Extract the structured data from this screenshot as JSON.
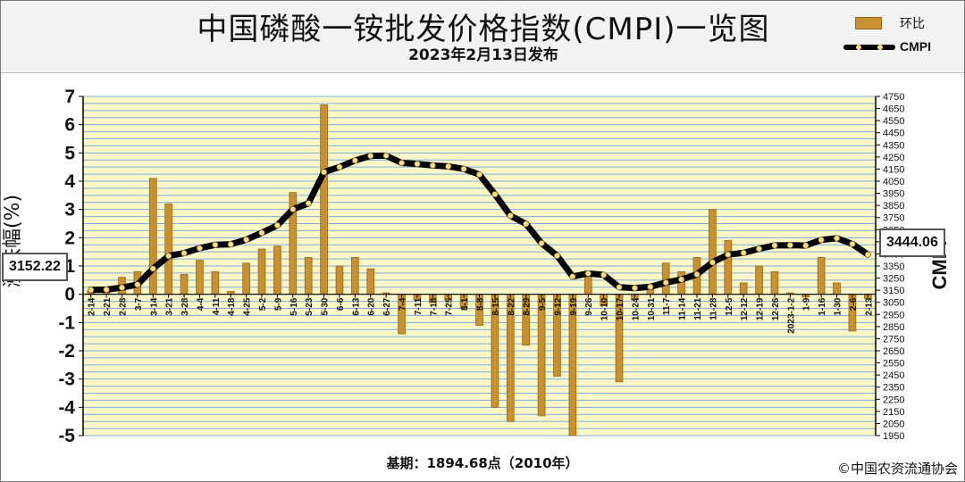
{
  "header": {
    "title": "中国磷酸一铵批发价格指数(CMPI)一览图",
    "subtitle": "2023年2月13日发布"
  },
  "legend": {
    "bar_label": "环比",
    "line_label": "CMPI"
  },
  "footer": {
    "base_note": "基期：1894.68点（2010年）",
    "copyright": "©中国农资流通协会"
  },
  "callouts": {
    "left_value": "3152.22",
    "right_value": "3444.06"
  },
  "colors": {
    "plot_band_yellow": "#fbf7c6",
    "grid": "#79aee0",
    "bar_fill": "#c8902e",
    "line": "#000000",
    "marker_fill": "#f3dd86"
  },
  "chart_data": {
    "type": "bar",
    "title": "中国磷酸一铵批发价格指数(CMPI)一览图",
    "ylabel": "涨跌幅(%)",
    "y2label": "CMPI",
    "ylim": [
      -5,
      7
    ],
    "y2lim": [
      1950,
      4750
    ],
    "y_ticks": [
      "7",
      "6",
      "5",
      "4",
      "3",
      "2",
      "1",
      "0",
      "-1",
      "-2",
      "-3",
      "-4",
      "-5"
    ],
    "y2_ticks": [
      "4750",
      "4650",
      "4550",
      "4450",
      "4350",
      "4250",
      "4150",
      "4050",
      "3950",
      "3850",
      "3750",
      "3650",
      "3550",
      "3450",
      "3350",
      "3250",
      "3150",
      "3050",
      "2950",
      "2850",
      "2750",
      "2650",
      "2550",
      "2450",
      "2350",
      "2250",
      "2150",
      "2050",
      "1950"
    ],
    "x_tick_labels": [
      "2-14",
      "2-21",
      "2-28",
      "3-7",
      "3-14",
      "3-21",
      "3-28",
      "4-4",
      "4-11",
      "4-18",
      "4-25",
      "5-2",
      "5-9",
      "5-16",
      "5-23",
      "5-30",
      "6-6",
      "6-13",
      "6-20",
      "6-27",
      "7-4",
      "7-11",
      "7-18",
      "7-25",
      "8-1",
      "8-8",
      "8-15",
      "8-22",
      "8-29",
      "9-5",
      "9-12",
      "9-19",
      "9-26",
      "10-10",
      "10-17",
      "10-24",
      "10-31",
      "11-7",
      "11-14",
      "11-21",
      "11-28",
      "12-5",
      "12-12",
      "12-19",
      "12-26",
      "2023-1-2",
      "1-9",
      "1-16",
      "1-30",
      "2-6",
      "2-13"
    ],
    "grid": true,
    "legend_position": "top-right",
    "series": [
      {
        "name": "环比",
        "type": "bar",
        "values": [
          0.1,
          0.1,
          0.6,
          0.8,
          4.1,
          3.2,
          0.7,
          1.2,
          0.8,
          0.1,
          1.1,
          1.6,
          1.7,
          3.6,
          1.3,
          6.7,
          1.0,
          1.3,
          0.9,
          0.05,
          -1.4,
          -0.2,
          -0.3,
          -0.2,
          -0.5,
          -1.1,
          -4.0,
          -4.5,
          -1.8,
          -4.3,
          -2.9,
          -5.0,
          0.8,
          -0.4,
          -3.1,
          -0.2,
          0.3,
          1.1,
          0.8,
          1.3,
          3.0,
          1.9,
          0.4,
          1.0,
          0.8,
          0.05,
          -0.1,
          1.3,
          0.4,
          -1.3,
          -0.15
        ]
      },
      {
        "name": "CMPI",
        "type": "line",
        "values": [
          3152.22,
          3155,
          3172,
          3197,
          3328,
          3433,
          3456,
          3497,
          3525,
          3529,
          3567,
          3624,
          3686,
          3818,
          3867,
          4125,
          4167,
          4221,
          4259,
          4261,
          4201,
          4193,
          4180,
          4172,
          4151,
          4105,
          3942,
          3765,
          3697,
          3538,
          3435,
          3263,
          3289,
          3276,
          3175,
          3168,
          3178,
          3213,
          3239,
          3281,
          3380,
          3444,
          3458,
          3492,
          3520,
          3522,
          3519,
          3565,
          3579,
          3532,
          3444.06
        ]
      }
    ]
  }
}
